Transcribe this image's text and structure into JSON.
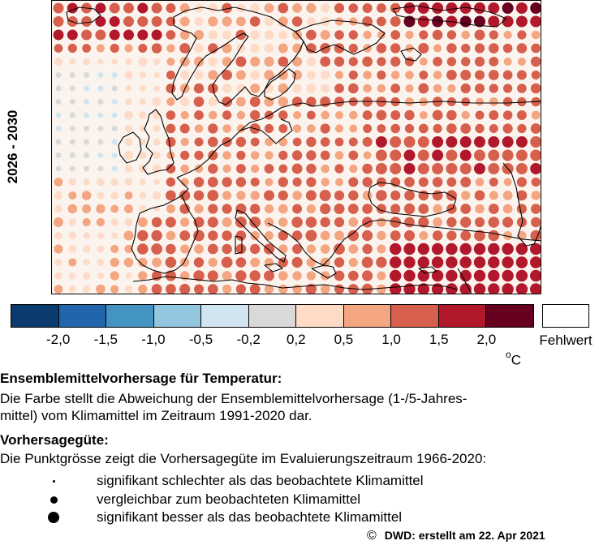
{
  "map": {
    "period_label": "2026 - 2030"
  },
  "colorbar": {
    "colors": [
      "#0b3a6e",
      "#2166ac",
      "#4393c3",
      "#92c5de",
      "#d1e5f0",
      "#d9d9d9",
      "#fddbc7",
      "#f4a582",
      "#d6604d",
      "#b2182b",
      "#67001f"
    ],
    "ticks": [
      "-2,0",
      "-1,5",
      "-1,0",
      "-0,5",
      "-0,2",
      "0,2",
      "0,5",
      "1,0",
      "1,5",
      "2,0"
    ],
    "missing_label": "Fehlwert",
    "unit": "C",
    "unit_degree": "o"
  },
  "description": {
    "heading1": "Ensemblemittelvorhersage für Temperatur:",
    "text1_line1": "Die Farbe stellt die Abweichung der Ensemblemittelvorhersage (1-/5-Jahres-",
    "text1_line2": "mittel) vom Klimamittel im Zeitraum 1991-2020 dar.",
    "heading2": "Vorhersagegüte:",
    "text2": "Die Punktgrösse zeigt die Vorhersagegüte im Evaluierungszeitraum 1966-2020:"
  },
  "skill_legend": [
    {
      "label": "signifikant schlechter als das beobachtete Klimamittel"
    },
    {
      "label": "vergleichbar zum beobachteten Klimamittel"
    },
    {
      "label": "signifikant besser als das beobachtete Klimamittel"
    }
  ],
  "footer": {
    "symbol": "©",
    "text": "DWD: erstellt am 22. Apr 2021"
  }
}
